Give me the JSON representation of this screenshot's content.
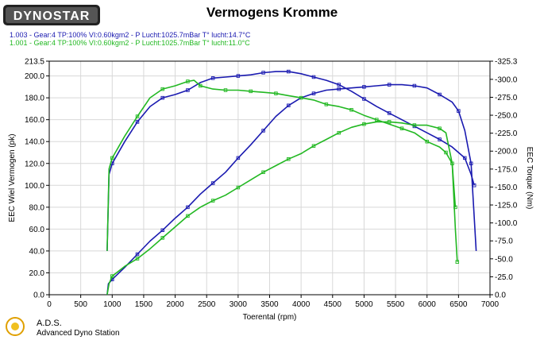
{
  "header": {
    "brand": "DYNOSTAR",
    "title": "Vermogens Kromme"
  },
  "runs": [
    {
      "text": "1.003 - Gear:4 TP:100% VI:0.60kgm2   - P Lucht:1025.7mBar T° lucht:14.7°C",
      "color": "#1a1ab0"
    },
    {
      "text": "1.001 - Gear:4 TP:100% VI:0.60kgm2   - P Lucht:1025.7mBar T° lucht:11.0°C",
      "color": "#22b822"
    }
  ],
  "footer": {
    "name": "A.D.S.",
    "subtitle": "Advanced Dyno Station"
  },
  "chart_data": {
    "type": "line",
    "xlabel": "Toerental (rpm)",
    "ylabel": "EEC Wiel Vermogen (pk)",
    "y2label": "EEC Torque (Nm)",
    "xlim": [
      0,
      7000
    ],
    "ylim": [
      0,
      213.5
    ],
    "y2lim": [
      0,
      -325.3
    ],
    "x_ticks": [
      "0",
      "500",
      "1000",
      "1500",
      "2000",
      "2500",
      "3000",
      "3500",
      "4000",
      "4500",
      "5000",
      "5500",
      "6000",
      "6500",
      "7000"
    ],
    "y_ticks": [
      "0.0",
      "20.0",
      "40.0",
      "60.0",
      "80.0",
      "100.0",
      "120.0",
      "140.0",
      "160.0",
      "180.0",
      "200.0",
      "213.5"
    ],
    "y2_ticks": [
      "0.0",
      "-25.0",
      "-50.0",
      "-75.0",
      "-100.0",
      "-125.0",
      "-150.0",
      "-175.0",
      "-200.0",
      "-225.0",
      "-250.0",
      "-275.0",
      "-300.0",
      "-325.3"
    ],
    "grid": true,
    "series": [
      {
        "name": "1.003",
        "kind": "power",
        "color": "#1a1ab0",
        "points": [
          [
            920,
            0
          ],
          [
            940,
            10
          ],
          [
            1000,
            14
          ],
          [
            1200,
            25
          ],
          [
            1400,
            37
          ],
          [
            1600,
            49
          ],
          [
            1800,
            59
          ],
          [
            2000,
            70
          ],
          [
            2200,
            80
          ],
          [
            2400,
            92
          ],
          [
            2600,
            102
          ],
          [
            2800,
            112
          ],
          [
            3000,
            125
          ],
          [
            3200,
            137
          ],
          [
            3400,
            150
          ],
          [
            3600,
            163
          ],
          [
            3800,
            173
          ],
          [
            4000,
            180
          ],
          [
            4200,
            184
          ],
          [
            4400,
            187
          ],
          [
            4600,
            188
          ],
          [
            4800,
            189
          ],
          [
            5000,
            190
          ],
          [
            5200,
            191
          ],
          [
            5400,
            192
          ],
          [
            5600,
            192
          ],
          [
            5800,
            191
          ],
          [
            6000,
            189
          ],
          [
            6200,
            183
          ],
          [
            6400,
            176
          ],
          [
            6500,
            168
          ],
          [
            6600,
            150
          ],
          [
            6700,
            120
          ],
          [
            6780,
            40
          ]
        ]
      },
      {
        "name": "1.003",
        "kind": "torque",
        "color": "#1a1ab0",
        "points": [
          [
            920,
            40
          ],
          [
            950,
            110
          ],
          [
            1000,
            120
          ],
          [
            1200,
            140
          ],
          [
            1400,
            158
          ],
          [
            1600,
            172
          ],
          [
            1800,
            180
          ],
          [
            2000,
            183
          ],
          [
            2200,
            187
          ],
          [
            2400,
            194
          ],
          [
            2600,
            198
          ],
          [
            2800,
            199
          ],
          [
            3000,
            200
          ],
          [
            3200,
            201
          ],
          [
            3400,
            203
          ],
          [
            3600,
            204
          ],
          [
            3800,
            204
          ],
          [
            4000,
            202
          ],
          [
            4200,
            199
          ],
          [
            4400,
            196
          ],
          [
            4600,
            192
          ],
          [
            4800,
            186
          ],
          [
            5000,
            179
          ],
          [
            5200,
            172
          ],
          [
            5400,
            166
          ],
          [
            5600,
            160
          ],
          [
            5800,
            154
          ],
          [
            6000,
            148
          ],
          [
            6200,
            142
          ],
          [
            6400,
            135
          ],
          [
            6600,
            125
          ],
          [
            6700,
            110
          ],
          [
            6750,
            100
          ]
        ]
      },
      {
        "name": "1.001",
        "kind": "power",
        "color": "#22b822",
        "points": [
          [
            920,
            0
          ],
          [
            950,
            10
          ],
          [
            1000,
            17
          ],
          [
            1200,
            26
          ],
          [
            1400,
            33
          ],
          [
            1600,
            42
          ],
          [
            1800,
            52
          ],
          [
            2000,
            62
          ],
          [
            2200,
            72
          ],
          [
            2400,
            80
          ],
          [
            2600,
            86
          ],
          [
            2800,
            91
          ],
          [
            3000,
            98
          ],
          [
            3200,
            105
          ],
          [
            3400,
            112
          ],
          [
            3600,
            118
          ],
          [
            3800,
            124
          ],
          [
            4000,
            129
          ],
          [
            4200,
            136
          ],
          [
            4400,
            142
          ],
          [
            4600,
            148
          ],
          [
            4800,
            153
          ],
          [
            5000,
            156
          ],
          [
            5200,
            158
          ],
          [
            5400,
            158
          ],
          [
            5600,
            157
          ],
          [
            5800,
            155
          ],
          [
            6000,
            155
          ],
          [
            6200,
            152
          ],
          [
            6300,
            148
          ],
          [
            6400,
            120
          ],
          [
            6450,
            60
          ],
          [
            6480,
            30
          ]
        ]
      },
      {
        "name": "1.001",
        "kind": "torque",
        "color": "#22b822",
        "points": [
          [
            920,
            40
          ],
          [
            950,
            115
          ],
          [
            1000,
            125
          ],
          [
            1200,
            145
          ],
          [
            1400,
            163
          ],
          [
            1600,
            180
          ],
          [
            1800,
            188
          ],
          [
            2000,
            191
          ],
          [
            2200,
            195
          ],
          [
            2300,
            196
          ],
          [
            2400,
            191
          ],
          [
            2600,
            188
          ],
          [
            2800,
            187
          ],
          [
            3000,
            187
          ],
          [
            3200,
            186
          ],
          [
            3400,
            185
          ],
          [
            3600,
            184
          ],
          [
            3800,
            182
          ],
          [
            4000,
            180
          ],
          [
            4200,
            178
          ],
          [
            4400,
            174
          ],
          [
            4600,
            172
          ],
          [
            4800,
            169
          ],
          [
            5000,
            164
          ],
          [
            5200,
            160
          ],
          [
            5400,
            156
          ],
          [
            5600,
            152
          ],
          [
            5800,
            148
          ],
          [
            6000,
            140
          ],
          [
            6200,
            135
          ],
          [
            6300,
            130
          ],
          [
            6400,
            120
          ],
          [
            6450,
            80
          ]
        ]
      }
    ]
  }
}
